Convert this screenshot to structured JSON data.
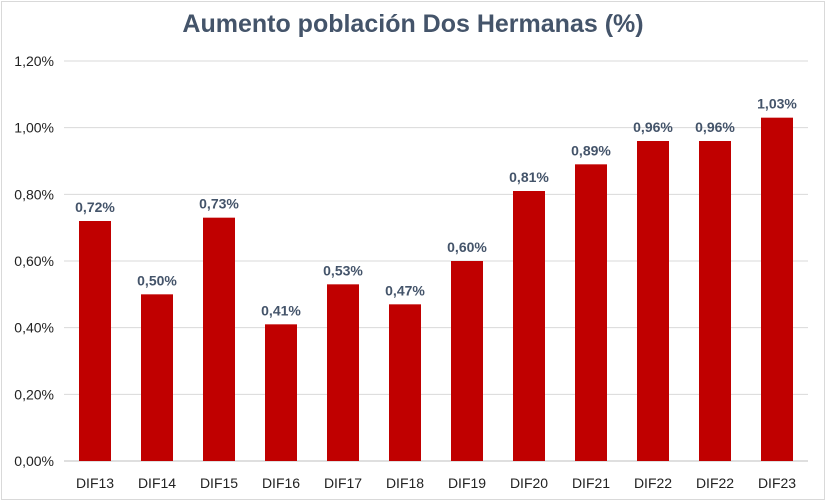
{
  "chart_data": {
    "type": "bar",
    "title": "Aumento población Dos Hermanas (%)",
    "xlabel": "",
    "ylabel": "",
    "categories": [
      "DIF13",
      "DIF14",
      "DIF15",
      "DIF16",
      "DIF17",
      "DIF18",
      "DIF19",
      "DIF20",
      "DIF21",
      "DIF22",
      "DIF22",
      "DIF23"
    ],
    "values": [
      0.72,
      0.5,
      0.73,
      0.41,
      0.53,
      0.47,
      0.6,
      0.81,
      0.89,
      0.96,
      0.96,
      1.03
    ],
    "data_labels": [
      "0,72%",
      "0,50%",
      "0,73%",
      "0,41%",
      "0,53%",
      "0,47%",
      "0,60%",
      "0,81%",
      "0,89%",
      "0,96%",
      "0,96%",
      "1,03%"
    ],
    "y_ticks": [
      0,
      0.2,
      0.4,
      0.6,
      0.8,
      1.0,
      1.2
    ],
    "y_tick_labels": [
      "0,00%",
      "0,20%",
      "0,40%",
      "0,60%",
      "0,80%",
      "1,00%",
      "1,20%"
    ],
    "ylim": [
      0,
      1.2
    ],
    "grid": true,
    "legend": "none",
    "bar_color": "#c00000",
    "grid_color": "#d9d9d9"
  }
}
